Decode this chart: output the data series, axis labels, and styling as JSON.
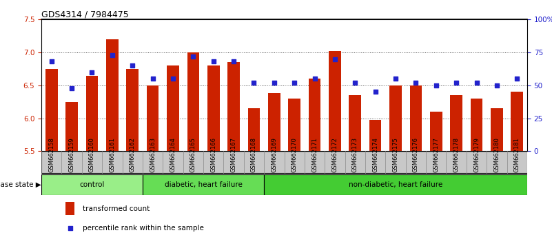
{
  "title": "GDS4314 / 7984475",
  "samples": [
    "GSM662158",
    "GSM662159",
    "GSM662160",
    "GSM662161",
    "GSM662162",
    "GSM662163",
    "GSM662164",
    "GSM662165",
    "GSM662166",
    "GSM662167",
    "GSM662168",
    "GSM662169",
    "GSM662170",
    "GSM662171",
    "GSM662172",
    "GSM662173",
    "GSM662174",
    "GSM662175",
    "GSM662176",
    "GSM662177",
    "GSM662178",
    "GSM662179",
    "GSM662180",
    "GSM662181"
  ],
  "bar_values": [
    6.75,
    6.25,
    6.65,
    7.2,
    6.75,
    6.5,
    6.8,
    7.0,
    6.8,
    6.85,
    6.15,
    6.38,
    6.3,
    6.6,
    7.02,
    6.35,
    5.98,
    6.5,
    6.5,
    6.1,
    6.35,
    6.3,
    6.15,
    6.4
  ],
  "percentile_values": [
    68,
    48,
    60,
    73,
    65,
    55,
    55,
    72,
    68,
    68,
    52,
    52,
    52,
    55,
    70,
    52,
    45,
    55,
    52,
    50,
    52,
    52,
    50,
    55
  ],
  "ylim_left": [
    5.5,
    7.5
  ],
  "ylim_right": [
    0,
    100
  ],
  "yticks_left": [
    5.5,
    6.0,
    6.5,
    7.0,
    7.5
  ],
  "yticks_right": [
    0,
    25,
    50,
    75,
    100
  ],
  "ytick_labels_right": [
    "0",
    "25",
    "50",
    "75",
    "100%"
  ],
  "bar_color": "#CC2200",
  "dot_color": "#2222CC",
  "grid_color": "#555555",
  "groups": [
    {
      "label": "control",
      "start": 0,
      "end": 5
    },
    {
      "label": "diabetic, heart failure",
      "start": 5,
      "end": 11
    },
    {
      "label": "non-diabetic, heart failure",
      "start": 11,
      "end": 24
    }
  ],
  "group_colors": [
    "#99EE88",
    "#66DD55",
    "#44CC33"
  ],
  "disease_state_label": "disease state",
  "legend_items": [
    {
      "label": "transformed count",
      "color": "#CC2200"
    },
    {
      "label": "percentile rank within the sample",
      "color": "#2222CC"
    }
  ]
}
